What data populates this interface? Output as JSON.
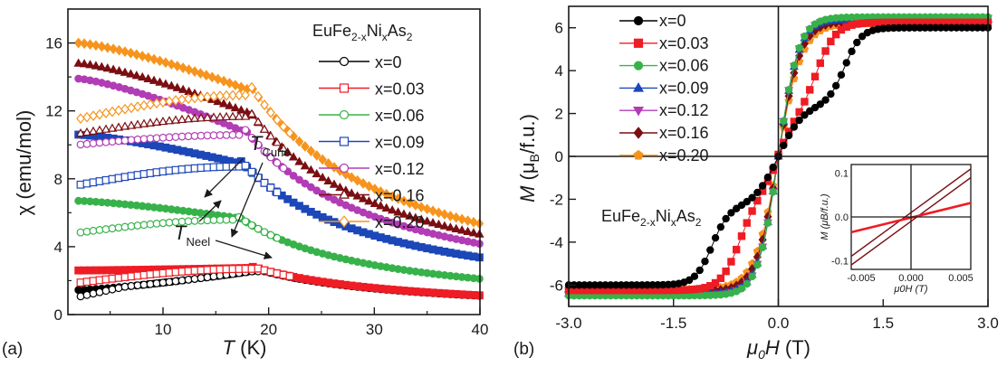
{
  "chart_data": [
    {
      "panel": "(a)",
      "type": "scatter",
      "xlabel_main": "T",
      "xlabel_unit": "(K)",
      "ylabel_main": "χ",
      "ylabel_unit": "(emu/mol)",
      "xlim": [
        1,
        40
      ],
      "ylim": [
        0,
        18
      ],
      "xticks": [
        10,
        20,
        30,
        40
      ],
      "yticks": [
        0,
        4,
        8,
        12,
        16
      ],
      "legend_title": {
        "base": "EuFe",
        "s1": "2-x",
        "mid": "Ni",
        "s2": "x",
        "end": "As",
        "s3": "2"
      },
      "annotations": [
        {
          "main": "T",
          "sub": "Curie",
          "x": 16.5,
          "y": 5.9
        },
        {
          "main": "T",
          "sub": "Neel",
          "x": 17.5,
          "y": 2.6
        }
      ],
      "series": [
        {
          "name": "x=0",
          "color": "#000000",
          "marker": "circle",
          "Tc": 19.0,
          "chi_low": 1.45,
          "chi_peak": 2.6
        },
        {
          "name": "x=0.03",
          "color": "#ee1c24",
          "marker": "square",
          "Tc": 18.5,
          "chi_low": 2.6,
          "chi_peak": 2.75
        },
        {
          "name": "x=0.06",
          "color": "#37b24a",
          "marker": "circle",
          "Tc": 17.0,
          "chi_low": 6.7,
          "chi_peak": 5.7
        },
        {
          "name": "x=0.09",
          "color": "#1c47b8",
          "marker": "square",
          "Tc": 17.3,
          "chi_low": 10.6,
          "chi_peak": 8.9
        },
        {
          "name": "x=0.12",
          "color": "#b23cb5",
          "marker": "circle",
          "Tc": 17.6,
          "chi_low": 13.9,
          "chi_peak": 10.8
        },
        {
          "name": "x=0.16",
          "color": "#7a0e12",
          "marker": "triangle",
          "Tc": 18.0,
          "chi_low": 14.8,
          "chi_peak": 11.9
        },
        {
          "name": "x=0.20",
          "color": "#f7941d",
          "marker": "diamond",
          "Tc": 18.3,
          "chi_low": 16.0,
          "chi_peak": 13.2
        }
      ]
    },
    {
      "panel": "(b)",
      "type": "scatter",
      "xlabel_main": "μ",
      "xlabel_sub": "0",
      "xlabel_var": "H",
      "xlabel_unit": "(T)",
      "ylabel_main": "M",
      "ylabel_unit_pre": "(μ",
      "ylabel_unit_sub": "B",
      "ylabel_unit_post": "/f.u.)",
      "xlim": [
        -3.0,
        3.0
      ],
      "ylim": [
        -7,
        7
      ],
      "xticks": [
        "-3.0",
        "-1.5",
        "0.0",
        "1.5",
        "3.0"
      ],
      "yticks": [
        "-6",
        "-4",
        "-2",
        "0",
        "2",
        "4",
        "6"
      ],
      "formula": {
        "base": "EuFe",
        "s1": "2-x",
        "mid": "Ni",
        "s2": "x",
        "end": "As",
        "s3": "2"
      },
      "series": [
        {
          "name": "x=0",
          "color": "#000000",
          "marker": "circle",
          "Msat": 6.0,
          "width": 0.55,
          "center": 0.95
        },
        {
          "name": "x=0.03",
          "color": "#ee1c24",
          "marker": "square",
          "Msat": 6.25,
          "width": 0.45,
          "center": 0.55
        },
        {
          "name": "x=0.06",
          "color": "#37b24a",
          "marker": "circle",
          "Msat": 6.5,
          "width": 0.12,
          "center": 0.1
        },
        {
          "name": "x=0.09",
          "color": "#1c47b8",
          "marker": "triangle",
          "Msat": 6.4,
          "width": 0.12,
          "center": 0.1
        },
        {
          "name": "x=0.12",
          "color": "#b23cb5",
          "marker": "triangle-down",
          "Msat": 6.45,
          "width": 0.12,
          "center": 0.1
        },
        {
          "name": "x=0.16",
          "color": "#7a0e12",
          "marker": "diamond",
          "Msat": 6.3,
          "width": 0.13,
          "center": 0.1
        },
        {
          "name": "x=0.20",
          "color": "#f7941d",
          "marker": "pentagon",
          "Msat": 6.2,
          "width": 0.14,
          "center": 0.1
        }
      ],
      "inset": {
        "xlim": [
          -0.006,
          0.006
        ],
        "ylim": [
          -0.12,
          0.12
        ],
        "xticks": [
          "-0.005",
          "0.000",
          "0.005"
        ],
        "yticks": [
          "-0.1",
          "0.0",
          "0.1"
        ],
        "ylabel": "M (μB/f.u.)",
        "xlabel": "μ0H (T)",
        "lines": [
          {
            "color": "#7a0e12",
            "points": [
              [
                -0.006,
                -0.09
              ],
              [
                0.006,
                0.11
              ]
            ]
          },
          {
            "color": "#7a0e12",
            "points": [
              [
                -0.006,
                -0.11
              ],
              [
                0.006,
                0.09
              ]
            ]
          },
          {
            "color": "#ee1c24",
            "points": [
              [
                -0.006,
                -0.035
              ],
              [
                0.006,
                0.032
              ]
            ]
          }
        ]
      }
    }
  ]
}
